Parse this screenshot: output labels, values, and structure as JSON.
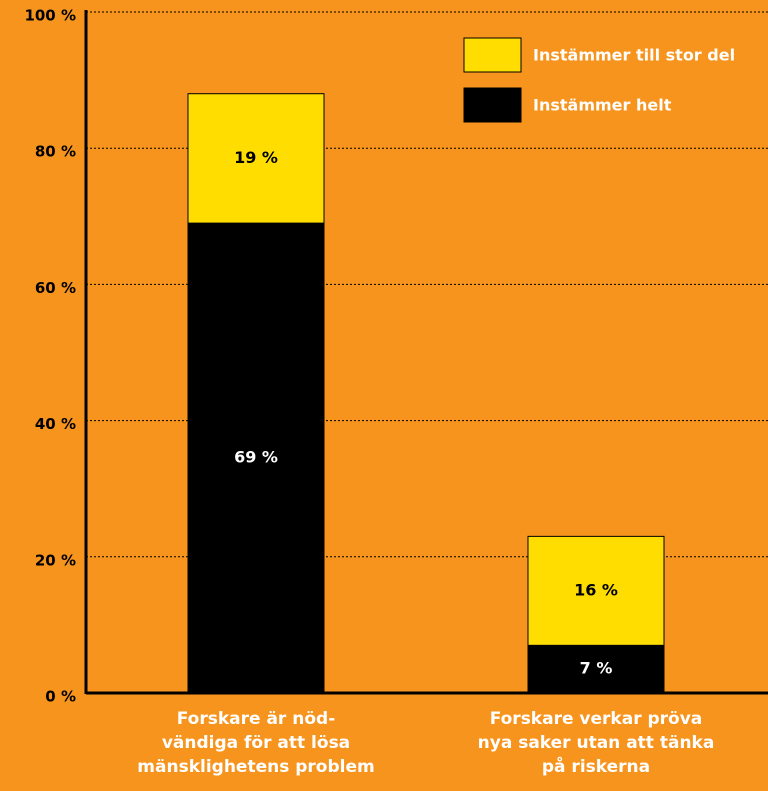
{
  "chart_data": {
    "type": "stacked_bar",
    "categories": [
      "Forskare är nöd-\nvändiga för att lösa\nmänsklighetens problem",
      "Forskare verkar pröva\nnya saker utan att tänka\npå riskerna"
    ],
    "series": [
      {
        "name": "Instämmer helt",
        "color": "#000000",
        "values": [
          69,
          7
        ],
        "value_labels": [
          "69 %",
          "7 %"
        ]
      },
      {
        "name": "Instämmer till stor del",
        "color": "#ffdd00",
        "values": [
          19,
          16
        ],
        "value_labels": [
          "19 %",
          "16 %"
        ]
      }
    ],
    "ylim": [
      0,
      100
    ],
    "yticks": [
      {
        "value": 0,
        "label": "0 %"
      },
      {
        "value": 20,
        "label": "20 %"
      },
      {
        "value": 40,
        "label": "40 %"
      },
      {
        "value": 60,
        "label": "60 %"
      },
      {
        "value": 80,
        "label": "80 %"
      },
      {
        "value": 100,
        "label": "100 %"
      }
    ],
    "grid": true
  }
}
